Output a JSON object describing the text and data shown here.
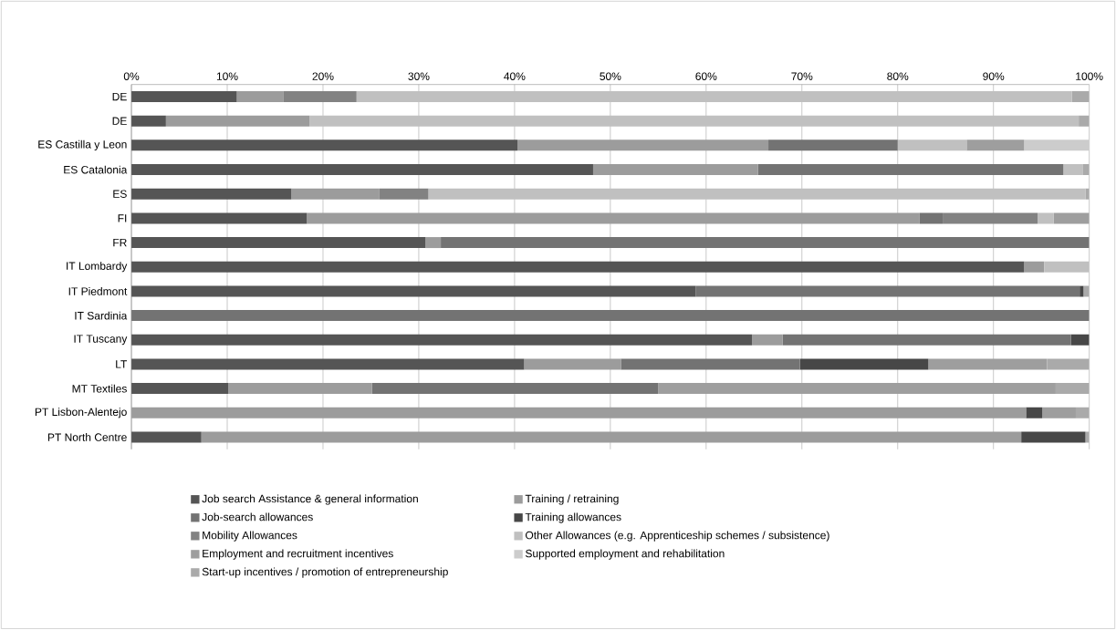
{
  "chart_data": {
    "type": "bar",
    "orientation": "horizontal",
    "stacked": true,
    "grid": "x",
    "legend": "bottom",
    "categories": [
      "DE",
      "DE",
      "ES Castilla y Leon",
      "ES Catalonia",
      "ES",
      "FI",
      "FR",
      "IT Lombardy",
      "IT Piedmont",
      "IT Sardinia",
      "IT Tuscany",
      "LT",
      "MT Textiles",
      "PT Lisbon-Alentejo",
      "PT North Centre"
    ],
    "xlim": [
      0,
      100
    ],
    "xticks": [
      {
        "value": 0,
        "label": "0%"
      },
      {
        "value": 10,
        "label": "10%"
      },
      {
        "value": 20,
        "label": "20%"
      },
      {
        "value": 30,
        "label": "30%"
      },
      {
        "value": 40,
        "label": "40%"
      },
      {
        "value": 50,
        "label": "50%"
      },
      {
        "value": 60,
        "label": "60%"
      },
      {
        "value": 70,
        "label": "70%"
      },
      {
        "value": 80,
        "label": "80%"
      },
      {
        "value": 90,
        "label": "90%"
      },
      {
        "value": 100,
        "label": "100%"
      }
    ],
    "series": [
      {
        "name": "Job search Assistance & general information",
        "color": "#555555",
        "values": [
          11,
          3.6,
          40.3,
          48.2,
          16.7,
          18.3,
          30.7,
          93.2,
          58.9,
          null,
          64.8,
          41.0,
          10.1,
          null,
          7.3
        ]
      },
      {
        "name": "Training / retraining",
        "color": "#9c9c9c",
        "values": [
          4.9,
          15,
          26.2,
          17.2,
          9.2,
          64.0,
          1.6,
          2.1,
          null,
          null,
          3.2,
          10.1,
          15.0,
          93.4,
          85.6
        ]
      },
      {
        "name": "Job-search allowances",
        "color": "#737373",
        "values": [
          null,
          null,
          13.5,
          31.9,
          null,
          2.4,
          67.7,
          null,
          40.1,
          100,
          30.1,
          18.7,
          29.9,
          null,
          null
        ]
      },
      {
        "name": "Training allowances",
        "color": "#474747",
        "values": [
          null,
          null,
          null,
          null,
          null,
          null,
          null,
          null,
          0.4,
          null,
          1.9,
          13.4,
          null,
          1.7,
          6.7
        ]
      },
      {
        "name": "Mobility Allowances",
        "color": "#828282",
        "values": [
          7.6,
          null,
          null,
          null,
          5.1,
          9.9,
          null,
          null,
          null,
          null,
          null,
          null,
          null,
          null,
          null
        ]
      },
      {
        "name": "Other Allowances (e.g. Apprenticeship schemes / subsistence)",
        "color": "#c0c0c0",
        "values": [
          74.7,
          80.3,
          7.2,
          2.0,
          68.6,
          1.7,
          null,
          4.7,
          null,
          null,
          null,
          null,
          null,
          null,
          null
        ]
      },
      {
        "name": "Employment and recruitment incentives",
        "color": "#9e9e9e",
        "values": [
          null,
          null,
          6.0,
          null,
          null,
          3.7,
          null,
          null,
          null,
          null,
          null,
          12.4,
          41.5,
          3.5,
          null
        ]
      },
      {
        "name": "Supported employment and rehabilitation",
        "color": "#cccccc",
        "values": [
          null,
          null,
          6.8,
          null,
          null,
          null,
          null,
          null,
          null,
          null,
          null,
          null,
          null,
          null,
          null
        ]
      },
      {
        "name": "Start-up incentives / promotion of entrepreneurship",
        "color": "#aaaaaa",
        "values": [
          1.8,
          1.1,
          null,
          0.7,
          0.4,
          null,
          null,
          null,
          0.6,
          null,
          null,
          4.4,
          3.5,
          1.4,
          0.4
        ]
      }
    ]
  }
}
